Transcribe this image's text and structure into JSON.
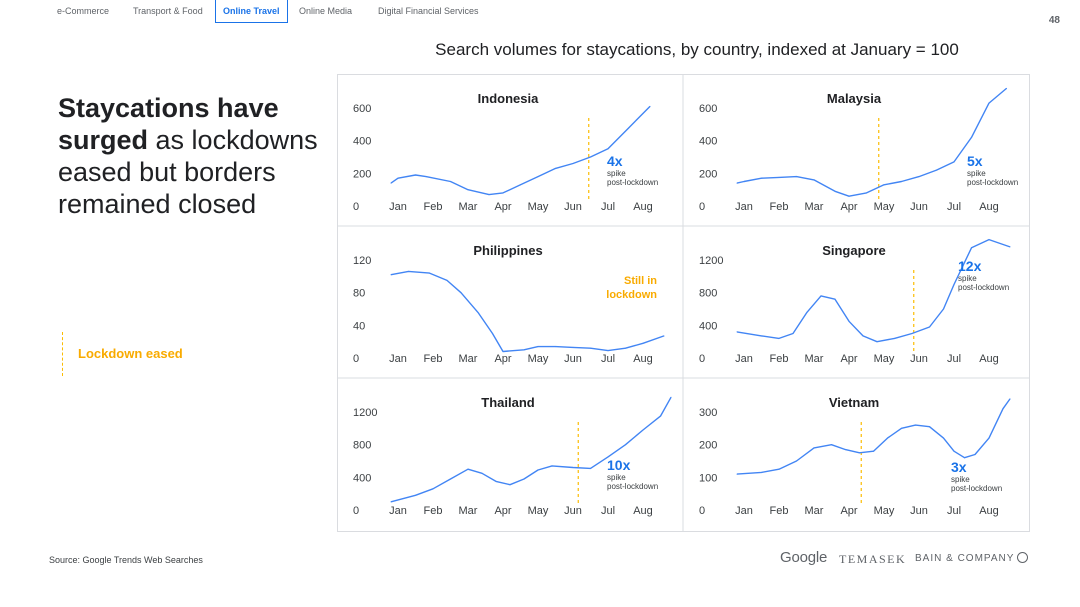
{
  "tabs": [
    {
      "label": "e-Commerce",
      "active": false
    },
    {
      "label": "Transport & Food",
      "active": false
    },
    {
      "label": "Online Travel",
      "active": true
    },
    {
      "label": "Online Media",
      "active": false
    },
    {
      "label": "Digital Financial Services",
      "active": false
    }
  ],
  "page_number": "48",
  "headline": {
    "bold": "Staycations have surged",
    "rest": " as lockdowns eased but borders remained closed"
  },
  "legend": {
    "label": "Lockdown eased"
  },
  "source": "Source: Google Trends Web Searches",
  "logos": {
    "google": "Google",
    "temasek": "TEMASEK",
    "bain": "BAIN & COMPANY"
  },
  "colors": {
    "line": "#4285f4",
    "accent_blue": "#1a73e8",
    "lockdown": "#fbbc04",
    "grid_border": "#dadce0"
  },
  "chart_data": {
    "type": "line",
    "title": "Search volumes for staycations, by country, indexed at January = 100",
    "months": [
      "Jan",
      "Feb",
      "Mar",
      "Apr",
      "May",
      "Jun",
      "Jul",
      "Aug"
    ],
    "panels": [
      {
        "name": "Indonesia",
        "ylim": [
          0,
          600
        ],
        "yticks": [
          0,
          200,
          400,
          600
        ],
        "x": [
          -0.2,
          0,
          0.5,
          0.8,
          1.5,
          2,
          2.6,
          3,
          3.5,
          4,
          4.5,
          5,
          5.5,
          6,
          6.6,
          7.2
        ],
        "values": [
          140,
          170,
          190,
          180,
          150,
          100,
          70,
          80,
          130,
          180,
          230,
          260,
          300,
          350,
          480,
          610
        ],
        "lockdown_eased": 5.45,
        "annotation": {
          "value": "4x",
          "sub1": "spike",
          "sub2": "post-lockdown",
          "color": "#1a73e8"
        }
      },
      {
        "name": "Malaysia",
        "ylim": [
          0,
          600
        ],
        "yticks": [
          0,
          200,
          400,
          600
        ],
        "x": [
          -0.2,
          0,
          0.5,
          1,
          1.5,
          2,
          2.6,
          3,
          3.5,
          4,
          4.5,
          5,
          5.5,
          6,
          6.5,
          7,
          7.5
        ],
        "values": [
          140,
          150,
          170,
          175,
          180,
          160,
          90,
          60,
          80,
          130,
          150,
          180,
          220,
          270,
          420,
          630,
          720
        ],
        "lockdown_eased": 3.85,
        "annotation": {
          "value": "5x",
          "sub1": "spike",
          "sub2": "post-lockdown",
          "color": "#1a73e8"
        }
      },
      {
        "name": "Philippines",
        "ylim": [
          0,
          120
        ],
        "yticks": [
          0,
          40,
          80,
          120
        ],
        "x": [
          -0.2,
          0.3,
          0.9,
          1.4,
          1.8,
          2.3,
          2.7,
          3,
          3.6,
          4,
          4.5,
          5,
          5.5,
          6,
          6.5,
          7,
          7.6
        ],
        "values": [
          102,
          106,
          104,
          95,
          80,
          55,
          30,
          8,
          10,
          14,
          14,
          13,
          12,
          9,
          12,
          18,
          27
        ],
        "lockdown_eased": null,
        "annotation": {
          "value": "Still in lockdown",
          "sub1": "",
          "sub2": "",
          "color": "#f9ab00"
        }
      },
      {
        "name": "Singapore",
        "ylim": [
          0,
          1200
        ],
        "yticks": [
          0,
          400,
          800,
          1200
        ],
        "x": [
          -0.2,
          0.5,
          1,
          1.4,
          1.8,
          2.2,
          2.6,
          3,
          3.4,
          3.8,
          4.3,
          4.8,
          5.3,
          5.7,
          6,
          6.5,
          7,
          7.6
        ],
        "values": [
          320,
          270,
          240,
          300,
          560,
          760,
          720,
          450,
          270,
          200,
          240,
          300,
          380,
          600,
          900,
          1350,
          1450,
          1360
        ],
        "lockdown_eased": 4.85,
        "annotation": {
          "value": "12x",
          "sub1": "spike",
          "sub2": "post-lockdown",
          "color": "#1a73e8"
        }
      },
      {
        "name": "Thailand",
        "ylim": [
          0,
          1200
        ],
        "yticks": [
          0,
          400,
          800,
          1200
        ],
        "x": [
          -0.2,
          0.5,
          1,
          1.5,
          2,
          2.4,
          2.8,
          3.2,
          3.6,
          4,
          4.4,
          5,
          5.5,
          6,
          6.5,
          7,
          7.5,
          7.8
        ],
        "values": [
          100,
          180,
          260,
          380,
          500,
          450,
          350,
          310,
          380,
          490,
          540,
          520,
          510,
          650,
          800,
          980,
          1150,
          1380
        ],
        "lockdown_eased": 5.15,
        "annotation": {
          "value": "10x",
          "sub1": "spike",
          "sub2": "post-lockdown",
          "color": "#1a73e8"
        }
      },
      {
        "name": "Vietnam",
        "ylim": [
          0,
          300
        ],
        "yticks": [
          0,
          100,
          200,
          300
        ],
        "x": [
          -0.2,
          0.5,
          1,
          1.5,
          2,
          2.5,
          2.9,
          3.3,
          3.7,
          4.1,
          4.5,
          4.9,
          5.3,
          5.7,
          6,
          6.3,
          6.6,
          7,
          7.4,
          7.6
        ],
        "values": [
          110,
          115,
          125,
          150,
          190,
          200,
          185,
          175,
          180,
          220,
          250,
          260,
          255,
          220,
          180,
          160,
          170,
          220,
          310,
          340
        ],
        "lockdown_eased": 3.35,
        "annotation": {
          "value": "3x",
          "sub1": "spike",
          "sub2": "post-lockdown",
          "color": "#1a73e8"
        }
      }
    ]
  }
}
